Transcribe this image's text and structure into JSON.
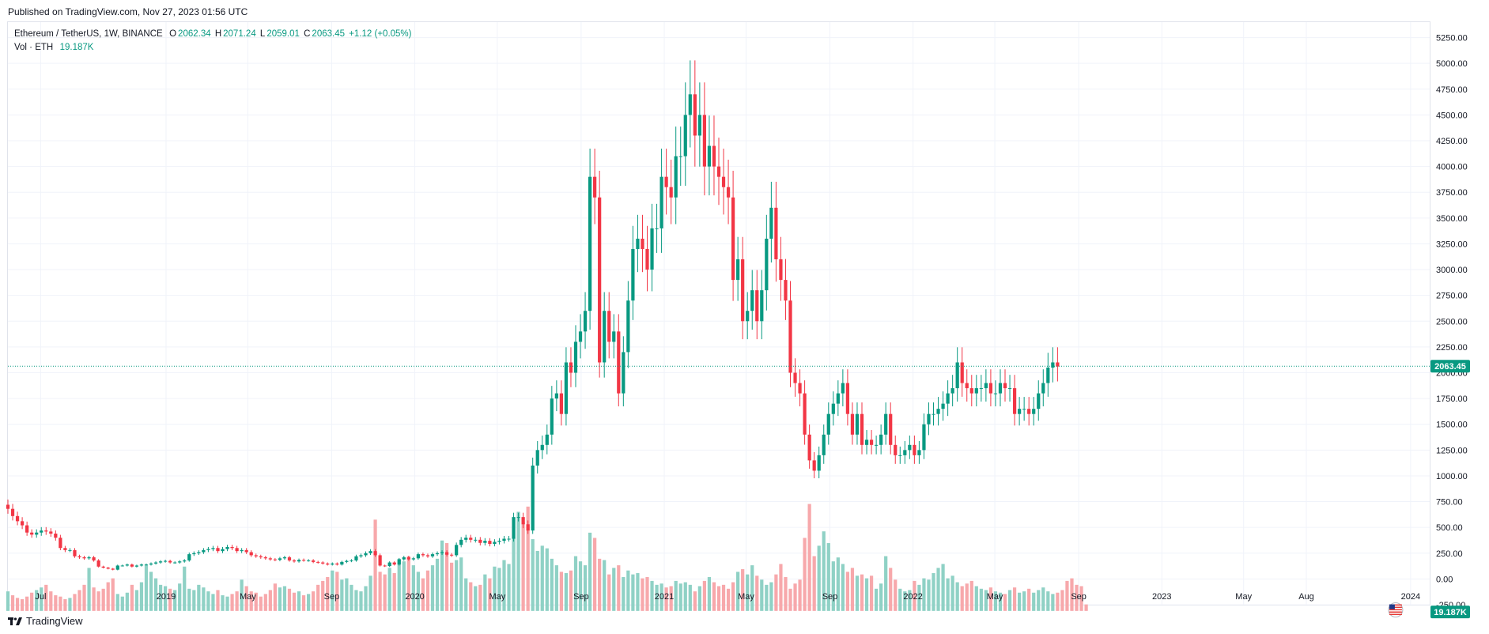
{
  "header": {
    "published": "Published on TradingView.com, Nov 27, 2023 01:56 UTC"
  },
  "legend": {
    "symbol": "Ethereum / TetherUS, 1W, BINANCE",
    "o_label": "O",
    "o_value": "2062.34",
    "h_label": "H",
    "h_value": "2071.24",
    "l_label": "L",
    "l_value": "2059.01",
    "c_label": "C",
    "c_value": "2063.45",
    "change": "+1.12 (+0.05%)",
    "vol_label": "Vol · ETH",
    "vol_value": "19.187K"
  },
  "footer": {
    "brand": "TradingView"
  },
  "colors": {
    "up": "#089981",
    "down": "#f23645",
    "vol_up": "#8fd1c5",
    "vol_down": "#f7a8ab",
    "grid": "#f0f3fa"
  },
  "chart_data": {
    "type": "candlestick",
    "title": "Ethereum / TetherUS, 1W, BINANCE",
    "xlabel": "",
    "ylabel": "",
    "ylim": [
      -250,
      5400
    ],
    "y_ticks": [
      5250,
      5000,
      4750,
      4500,
      4250,
      4000,
      3750,
      3500,
      3250,
      3000,
      2750,
      2500,
      2250,
      2000,
      1750,
      1500,
      1250,
      1000,
      750,
      500,
      250,
      0,
      -250
    ],
    "y_tick_labels": [
      "5250.00",
      "5000.00",
      "4750.00",
      "4500.00",
      "4250.00",
      "4000.00",
      "3750.00",
      "3500.00",
      "3250.00",
      "3000.00",
      "2750.00",
      "2500.00",
      "2250.00",
      "2000.00",
      "1750.00",
      "1500.00",
      "1250.00",
      "1000.00",
      "750.00",
      "500.00",
      "250.00",
      "0.00",
      "-250.00"
    ],
    "x_ticks": [
      {
        "label": "Jul",
        "date": "2018-07-01"
      },
      {
        "label": "2019",
        "date": "2019-01-01"
      },
      {
        "label": "May",
        "date": "2019-05-01"
      },
      {
        "label": "Sep",
        "date": "2019-09-01"
      },
      {
        "label": "2020",
        "date": "2020-01-01"
      },
      {
        "label": "May",
        "date": "2020-05-01"
      },
      {
        "label": "Sep",
        "date": "2020-09-01"
      },
      {
        "label": "2021",
        "date": "2021-01-01"
      },
      {
        "label": "May",
        "date": "2021-05-01"
      },
      {
        "label": "Sep",
        "date": "2021-09-01"
      },
      {
        "label": "2022",
        "date": "2022-01-01"
      },
      {
        "label": "May",
        "date": "2022-05-01"
      },
      {
        "label": "Sep",
        "date": "2022-09-01"
      },
      {
        "label": "2023",
        "date": "2023-01-01"
      },
      {
        "label": "May",
        "date": "2023-05-01"
      },
      {
        "label": "Aug",
        "date": "2023-08-01"
      },
      {
        "label": "2024",
        "date": "2024-01-01"
      }
    ],
    "x_range": [
      "2018-05-14",
      "2024-01-29"
    ],
    "first_week": "2018-05-14",
    "last_price": 2063.45,
    "last_price_label": "2063.45",
    "last_volume_label": "19.187K",
    "closes": [
      680,
      610,
      560,
      520,
      450,
      430,
      450,
      470,
      460,
      440,
      400,
      300,
      280,
      280,
      220,
      210,
      200,
      210,
      180,
      120,
      110,
      100,
      90,
      130,
      130,
      140,
      120,
      130,
      140,
      140,
      150,
      160,
      170,
      175,
      160,
      160,
      170,
      180,
      240,
      250,
      260,
      280,
      290,
      300,
      270,
      290,
      310,
      300,
      270,
      280,
      260,
      230,
      220,
      210,
      200,
      190,
      185,
      200,
      210,
      180,
      170,
      185,
      180,
      180,
      165,
      160,
      150,
      140,
      150,
      140,
      165,
      175,
      180,
      220,
      230,
      250,
      270,
      230,
      130,
      125,
      160,
      140,
      190,
      210,
      190,
      200,
      240,
      230,
      220,
      240,
      250,
      260,
      235,
      230,
      330,
      380,
      400,
      380,
      380,
      350,
      370,
      340,
      360,
      370,
      390,
      390,
      600,
      600,
      530,
      470,
      1100,
      1250,
      1300,
      1400,
      1750,
      1800,
      1600,
      2100,
      2000,
      2300,
      2400,
      2600,
      3900,
      3700,
      2100,
      2600,
      2300,
      2400,
      1800,
      2200,
      2700,
      3200,
      3300,
      3200,
      3000,
      3400,
      3400,
      3900,
      3800,
      3700,
      4100,
      4100,
      4500,
      4700,
      4300,
      4500,
      4000,
      4200,
      4000,
      3900,
      3800,
      3700,
      2900,
      3100,
      2500,
      2600,
      2800,
      2500,
      2800,
      3300,
      3600,
      3100,
      2900,
      2700,
      2000,
      1900,
      1800,
      1400,
      1150,
      1050,
      1200,
      1400,
      1600,
      1700,
      1800,
      1900,
      1600,
      1400,
      1600,
      1300,
      1350,
      1300,
      1300,
      1400,
      1600,
      1300,
      1200,
      1200,
      1250,
      1300,
      1200,
      1250,
      1500,
      1600,
      1600,
      1650,
      1700,
      1800,
      1850,
      2100,
      1900,
      1850,
      1800,
      1850,
      1850,
      1900,
      1800,
      1800,
      1900,
      1850,
      1850,
      1600,
      1650,
      1650,
      1600,
      1650,
      1800,
      1900,
      2050,
      2100,
      2060
    ],
    "volumes": [
      150,
      120,
      100,
      90,
      110,
      140,
      160,
      180,
      200,
      150,
      120,
      110,
      90,
      100,
      130,
      160,
      200,
      330,
      180,
      150,
      170,
      220,
      250,
      130,
      110,
      140,
      200,
      160,
      220,
      350,
      300,
      250,
      200,
      190,
      170,
      160,
      210,
      340,
      170,
      160,
      200,
      180,
      150,
      130,
      160,
      120,
      110,
      130,
      150,
      240,
      190,
      150,
      140,
      110,
      130,
      160,
      210,
      180,
      190,
      170,
      140,
      150,
      120,
      130,
      150,
      200,
      230,
      260,
      310,
      300,
      240,
      250,
      200,
      160,
      150,
      190,
      270,
      700,
      300,
      280,
      330,
      290,
      400,
      380,
      420,
      350,
      300,
      250,
      310,
      350,
      400,
      540,
      520,
      370,
      390,
      410,
      250,
      220,
      190,
      200,
      280,
      250,
      340,
      330,
      390,
      360,
      560,
      760,
      680,
      800,
      550,
      460,
      500,
      480,
      400,
      350,
      300,
      290,
      310,
      420,
      380,
      350,
      600,
      560,
      400,
      390,
      280,
      330,
      350,
      260,
      310,
      280,
      290,
      250,
      260,
      230,
      200,
      210,
      180,
      190,
      230,
      210,
      220,
      200,
      150,
      190,
      230,
      260,
      220,
      190,
      200,
      170,
      220,
      300,
      320,
      280,
      350,
      270,
      240,
      200,
      220,
      280,
      360,
      260,
      170,
      210,
      240,
      560,
      820,
      420,
      500,
      610,
      520,
      380,
      410,
      360,
      300,
      330,
      270,
      280,
      250,
      270,
      170,
      210,
      420,
      330,
      240,
      170,
      150,
      160,
      230,
      200,
      250,
      240,
      290,
      330,
      360,
      250,
      270,
      220,
      190,
      210,
      230,
      190,
      170,
      160,
      180,
      150,
      140,
      130,
      160,
      180,
      140,
      150,
      170,
      140,
      160,
      180,
      150,
      130,
      140,
      160,
      230,
      250,
      200,
      190,
      50
    ]
  }
}
